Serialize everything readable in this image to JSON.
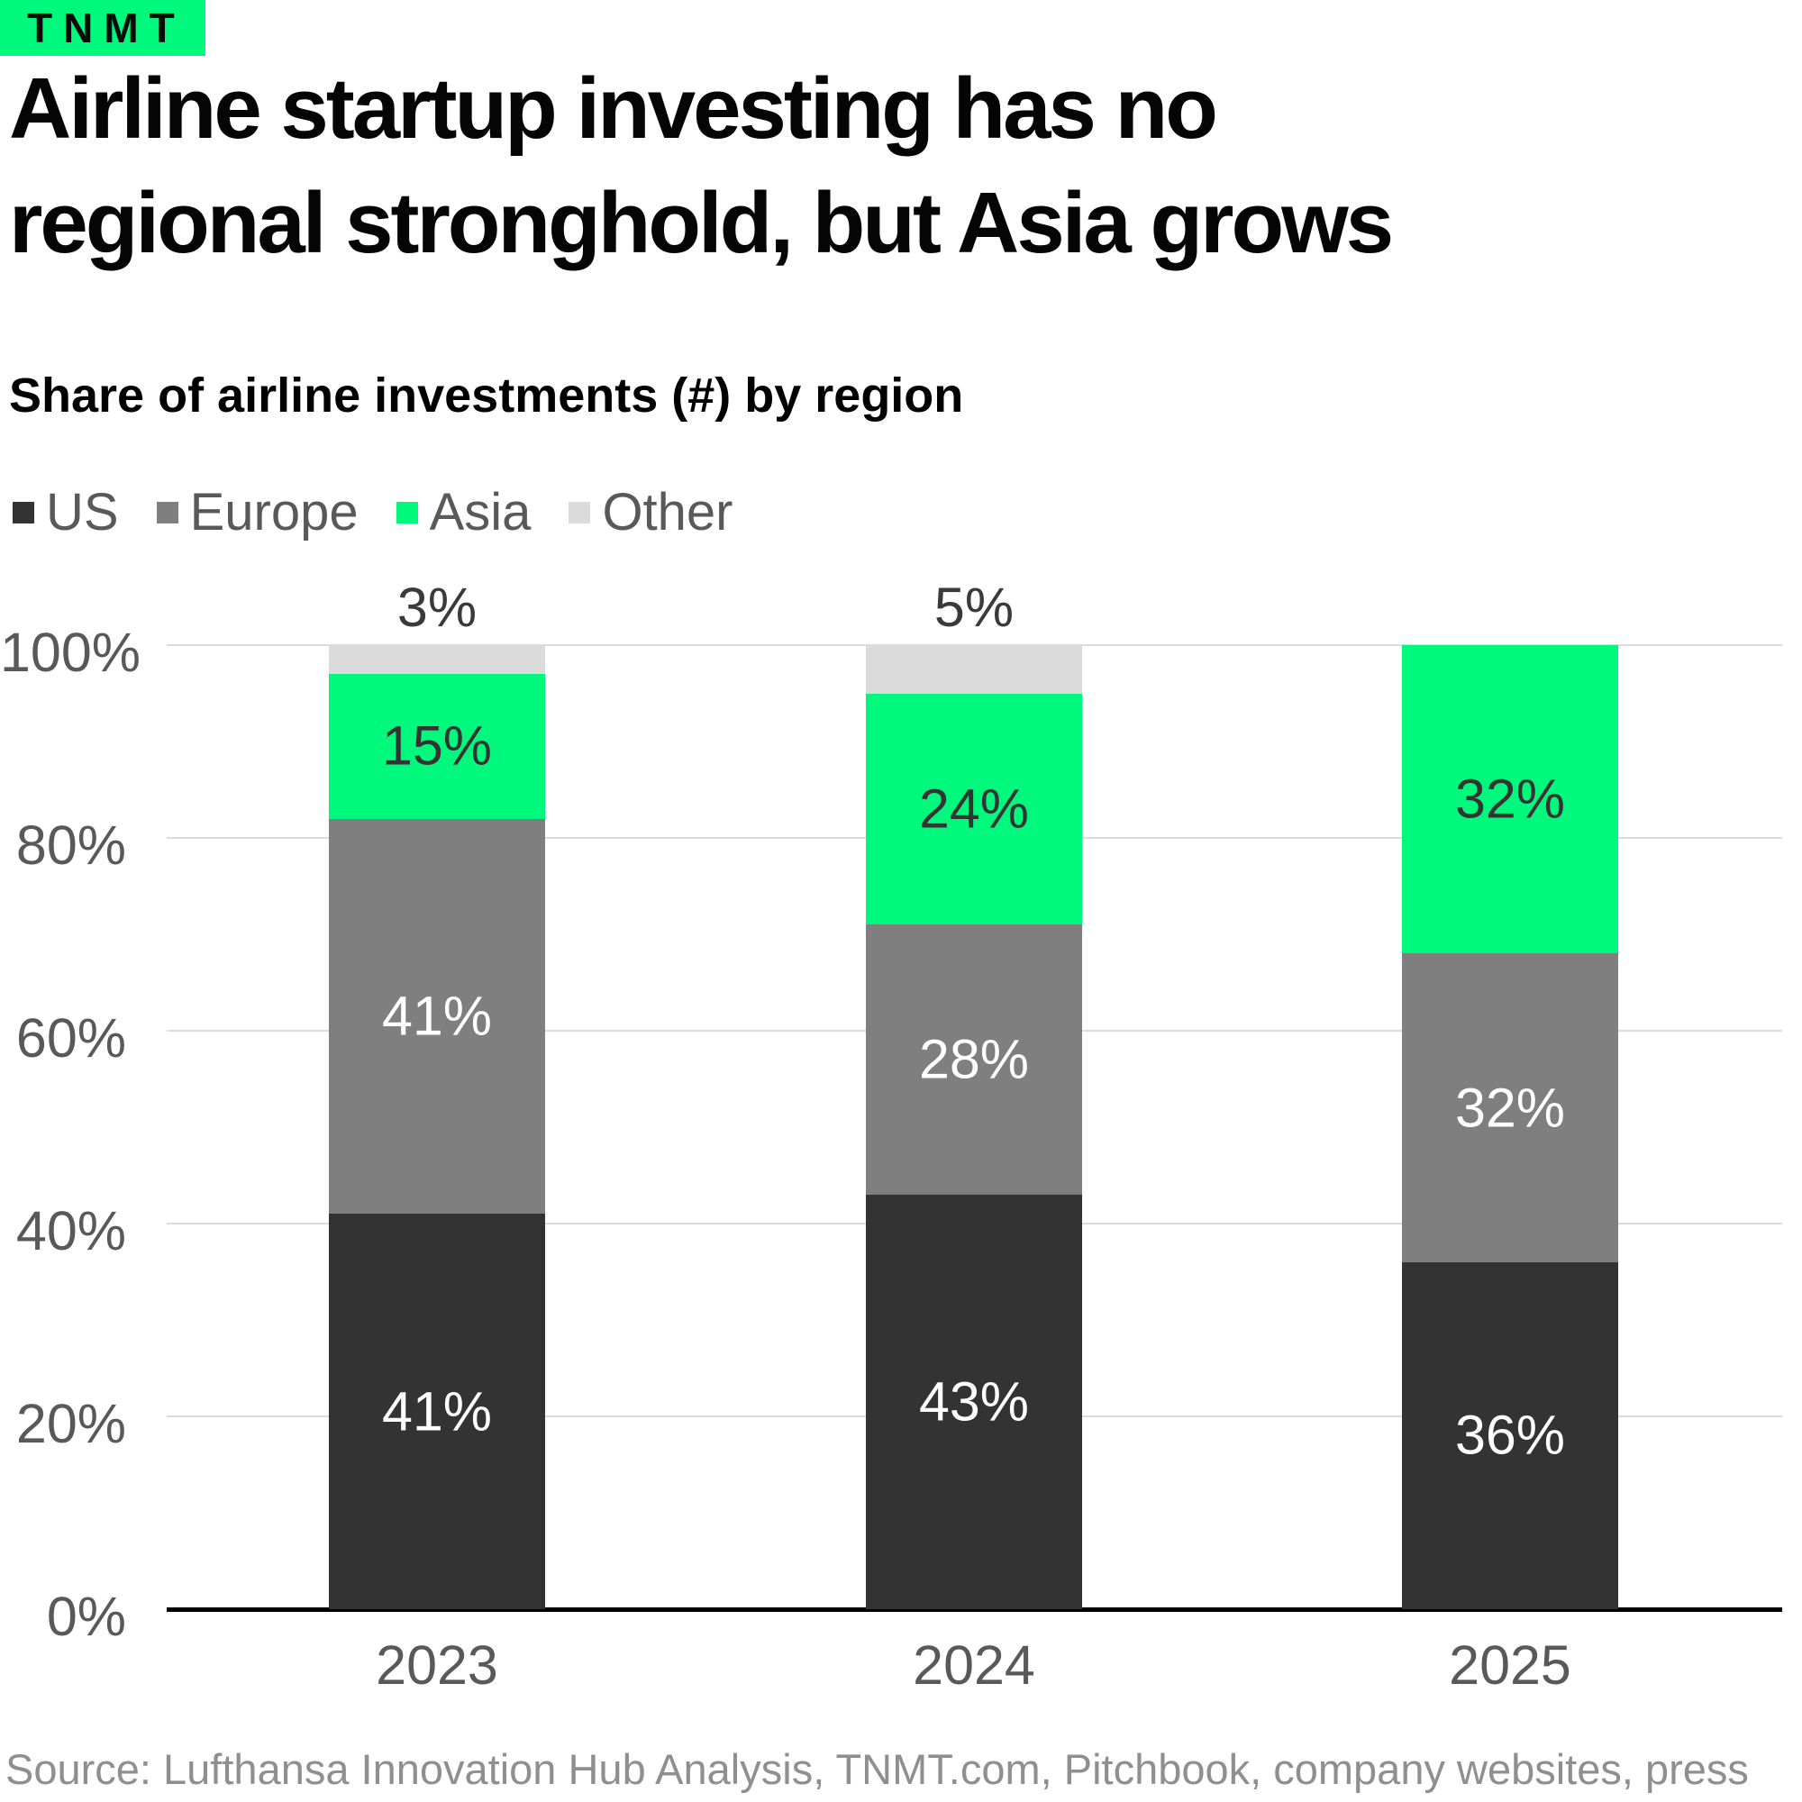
{
  "logo": {
    "text": "TNMT",
    "background": "#00F87C"
  },
  "header": {
    "title_line1": "Airline startup investing has no",
    "title_line2": "regional stronghold, but Asia grows",
    "subtitle": "Share of airline investments (#) by region"
  },
  "legend": [
    {
      "label": "US",
      "color": "#333333"
    },
    {
      "label": "Europe",
      "color": "#7F7F7F"
    },
    {
      "label": "Asia",
      "color": "#00F87C"
    },
    {
      "label": "Other",
      "color": "#DBDBDB"
    }
  ],
  "chart_data": {
    "type": "bar",
    "stacked": true,
    "percent": true,
    "title": "Share of airline investments (#) by region",
    "categories": [
      "2023",
      "2024",
      "2025"
    ],
    "series": [
      {
        "name": "US",
        "color": "#333333",
        "label_color": "#FFFFFF",
        "label_position": "inside",
        "values": [
          41,
          43,
          36
        ]
      },
      {
        "name": "Europe",
        "color": "#7F7F7F",
        "label_color": "#FFFFFF",
        "label_position": "inside",
        "values": [
          41,
          28,
          32
        ]
      },
      {
        "name": "Asia",
        "color": "#00F87C",
        "label_color": "#333333",
        "label_position": "inside",
        "values": [
          15,
          24,
          32
        ]
      },
      {
        "name": "Other",
        "color": "#DBDBDB",
        "label_color": "#3A3A3A",
        "label_position": "above",
        "values": [
          3,
          5,
          0
        ]
      }
    ],
    "y_ticks": [
      "100%",
      "80%",
      "60%",
      "40%",
      "20%",
      "0%"
    ],
    "ylim": [
      0,
      100
    ],
    "grid": true,
    "legend_position": "top-left"
  },
  "source": {
    "text": "Source: Lufthansa Innovation Hub Analysis, TNMT.com, Pitchbook, company websites, press"
  },
  "colors": {
    "grid": "#DCDCDC",
    "axis": "#000000",
    "tick_text": "#595959",
    "legend_text": "#595959",
    "source_text": "#8F8F8F",
    "above_label_text": "#3A3A3A"
  }
}
